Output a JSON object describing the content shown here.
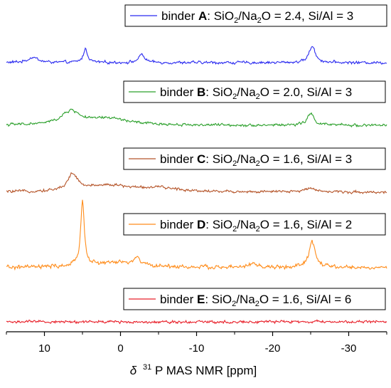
{
  "chart_data": {
    "type": "line",
    "xlabel": {
      "delta": "δ",
      "isotope_mass": "31",
      "rest": "P MAS NMR [ppm]"
    },
    "xlim": [
      15,
      -35
    ],
    "x_ticks": [
      10,
      0,
      -10,
      -20,
      -30
    ],
    "x_tick_labels": [
      "10",
      "0",
      "-10",
      "-20",
      "-30"
    ],
    "y_axis": "hidden",
    "grid": false,
    "legend_placement": "top-right of each trace",
    "series": [
      {
        "id": "A",
        "legend": {
          "binder_word": "binder",
          "letter": "A",
          "composition_prefix": ": SiO",
          "sub1": "2",
          "mid": "/Na",
          "sub2": "2",
          "composition_suffix": "O = 2.4, Si/Al = 3"
        },
        "color": "#2b2bf0",
        "baseline_slope_per_ppm": 0.0,
        "peaks": [
          {
            "center": 11.5,
            "height": 0.18,
            "width": 0.8
          },
          {
            "center": 4.6,
            "height": 0.45,
            "width": 0.35
          },
          {
            "center": -2.8,
            "height": 0.28,
            "width": 0.45
          },
          {
            "center": -25.2,
            "height": 0.55,
            "width": 0.5
          }
        ]
      },
      {
        "id": "B",
        "legend": {
          "binder_word": "binder",
          "letter": "B",
          "composition_prefix": ": SiO",
          "sub1": "2",
          "mid": "/Na",
          "sub2": "2",
          "composition_suffix": "O = 2.0, Si/Al = 3"
        },
        "color": "#2ca02c",
        "baseline_slope_per_ppm": 0.0,
        "peaks": [
          {
            "center": 6.5,
            "height": 0.45,
            "width": 1.5
          },
          {
            "center": 1.5,
            "height": 0.22,
            "width": 3.0
          },
          {
            "center": -25.0,
            "height": 0.38,
            "width": 0.55
          }
        ]
      },
      {
        "id": "C",
        "legend": {
          "binder_word": "binder",
          "letter": "C",
          "composition_prefix": ": SiO",
          "sub1": "2",
          "mid": "/Na",
          "sub2": "2",
          "composition_suffix": "O = 1.6, Si/Al = 3"
        },
        "color": "#b5552a",
        "baseline_slope_per_ppm": 0.0,
        "peaks": [
          {
            "center": 6.3,
            "height": 0.55,
            "width": 0.75
          },
          {
            "center": 1.8,
            "height": 0.22,
            "width": 3.5
          },
          {
            "center": -5.0,
            "height": 0.12,
            "width": 3.5
          },
          {
            "center": -25.0,
            "height": 0.15,
            "width": 0.8
          }
        ]
      },
      {
        "id": "D",
        "legend": {
          "binder_word": "binder",
          "letter": "D",
          "composition_prefix": ": SiO",
          "sub1": "2",
          "mid": "/Na",
          "sub2": "2",
          "composition_suffix": "O = 1.6, Si/Al = 2"
        },
        "color": "#ff8c1a",
        "baseline_slope_per_ppm": 0.0,
        "peaks": [
          {
            "center": 5.0,
            "height": 1.55,
            "width": 0.28
          },
          {
            "center": 0.5,
            "height": 0.12,
            "width": 4.0
          },
          {
            "center": -2.2,
            "height": 0.18,
            "width": 0.4
          },
          {
            "center": -17.5,
            "height": 0.1,
            "width": 0.5
          },
          {
            "center": -25.2,
            "height": 0.6,
            "width": 0.5
          }
        ]
      },
      {
        "id": "E",
        "legend": {
          "binder_word": "binder",
          "letter": "E",
          "composition_prefix": ": SiO",
          "sub1": "2",
          "mid": "/Na",
          "sub2": "2",
          "composition_suffix": "O = 1.6, Si/Al = 6"
        },
        "color": "#e8202a",
        "baseline_slope_per_ppm": 0.0,
        "peaks": []
      }
    ]
  }
}
